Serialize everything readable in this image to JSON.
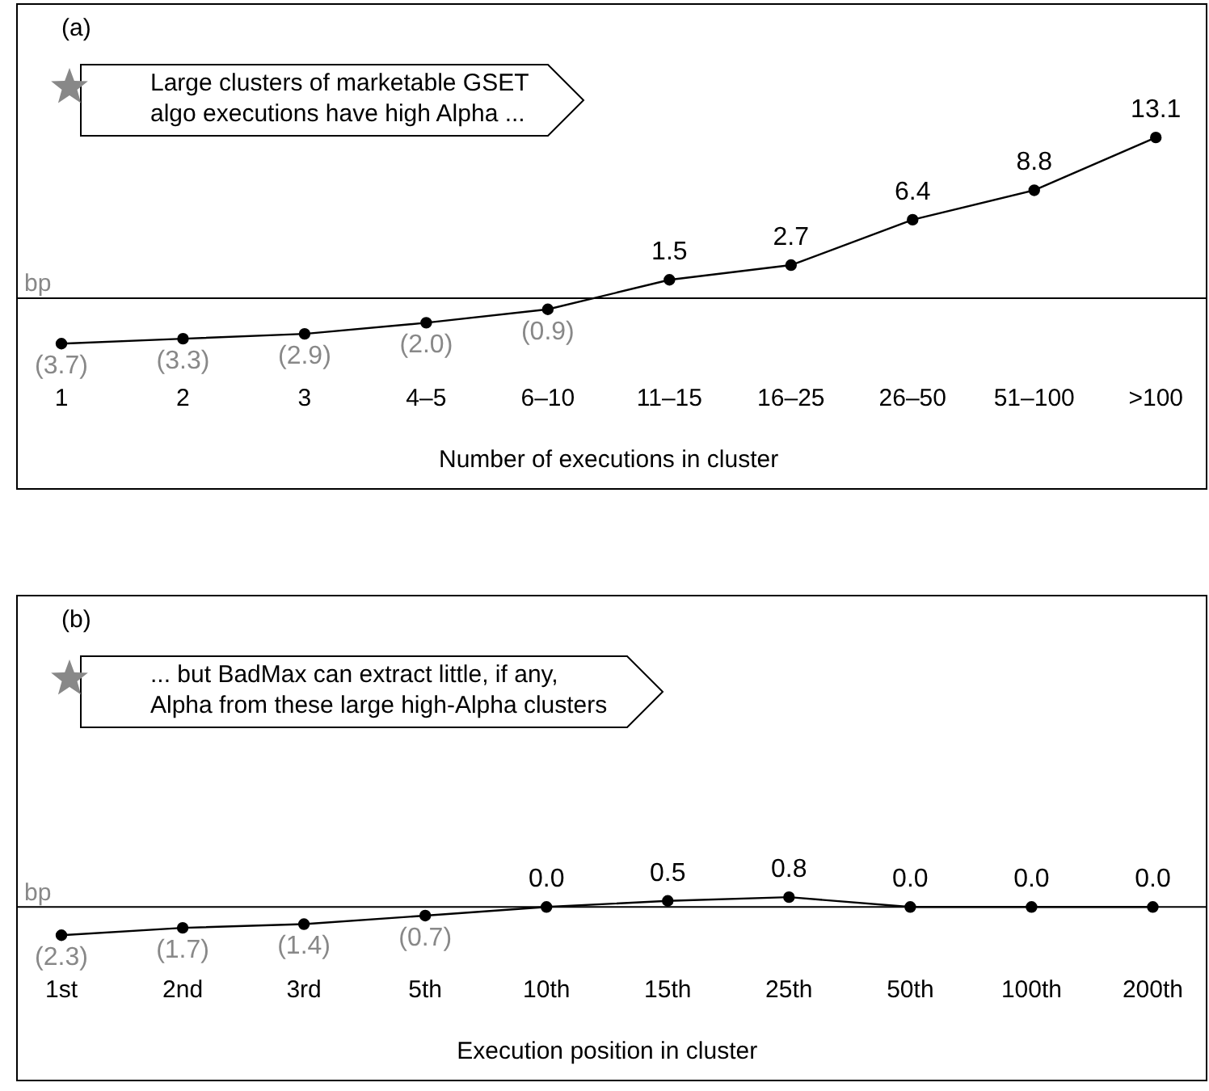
{
  "chart_data": [
    {
      "type": "line",
      "title": "(a)",
      "categories": [
        "1",
        "2",
        "3",
        "4–5",
        "6–10",
        "11–15",
        "16–25",
        "26–50",
        "51–100",
        ">100"
      ],
      "values": [
        -3.7,
        -3.3,
        -2.9,
        -2.0,
        -0.9,
        1.5,
        2.7,
        6.4,
        8.8,
        13.1
      ],
      "value_labels": [
        "(3.7)",
        "(3.3)",
        "(2.9)",
        "(2.0)",
        "(0.9)",
        "1.5",
        "2.7",
        "6.4",
        "8.8",
        "13.1"
      ],
      "color": "#000000",
      "marker": "circle",
      "xlabel": "Number of executions in cluster",
      "ref_lines": [
        {
          "axis": "y",
          "value": 0,
          "label": "bp"
        }
      ],
      "annotations": [
        "Large clusters of marketable GSET\nalgo executions have high Alpha ..."
      ],
      "tick_labels": "x"
    },
    {
      "type": "line",
      "title": "(b)",
      "categories": [
        "1st",
        "2nd",
        "3rd",
        "5th",
        "10th",
        "15th",
        "25th",
        "50th",
        "100th",
        "200th"
      ],
      "values": [
        -2.3,
        -1.7,
        -1.4,
        -0.7,
        0.0,
        0.5,
        0.8,
        0.0,
        0.0,
        0.0
      ],
      "value_labels": [
        "(2.3)",
        "(1.7)",
        "(1.4)",
        "(0.7)",
        "0.0",
        "0.5",
        "0.8",
        "0.0",
        "0.0",
        "0.0"
      ],
      "color": "#000000",
      "marker": "circle",
      "xlabel": "Execution position in cluster",
      "ref_lines": [
        {
          "axis": "y",
          "value": 0,
          "label": "bp"
        }
      ],
      "annotations": [
        "... but BadMax can extract little, if any,\nAlpha from these large high-Alpha clusters"
      ],
      "tick_labels": "x"
    }
  ]
}
